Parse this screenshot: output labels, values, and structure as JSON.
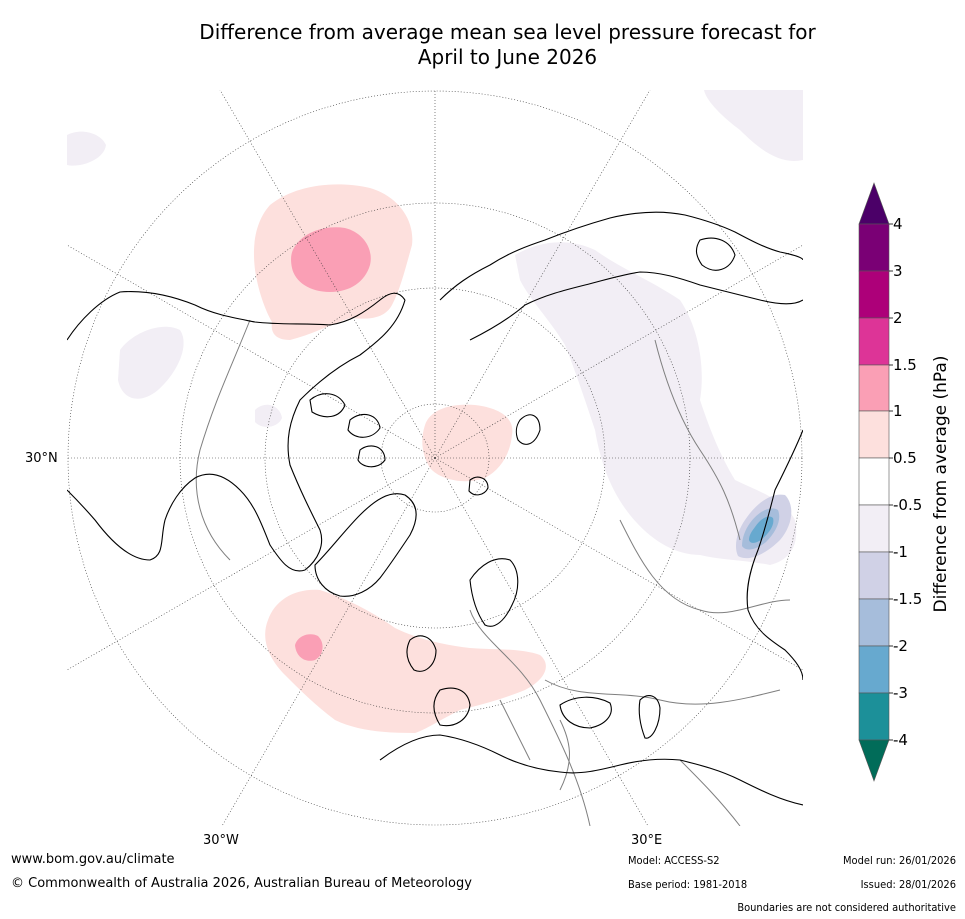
{
  "header": {
    "title_line1": "Difference from average mean sea level pressure forecast for",
    "title_line2": "April to June 2026"
  },
  "map": {
    "lon_labels": [
      "30°W",
      "30°E"
    ],
    "lat_labels": [
      "30°N"
    ],
    "land_color": "#ffffff",
    "coast_color": "#000000",
    "border_color": "#7f7f7f"
  },
  "colorbar": {
    "title": "Difference from average (hPa)",
    "ticks": [
      "4",
      "3",
      "2",
      "1.5",
      "1",
      "0.5",
      "-0.5",
      "-1",
      "-1.5",
      "-2",
      "-3",
      "-4"
    ],
    "colors_top_to_bottom": [
      "#4b0068",
      "#7a0075",
      "#ad0079",
      "#dd3497",
      "#fa9fb5",
      "#fde0dd",
      "#ffffff",
      "#f2eef5",
      "#d0d1e6",
      "#a6bddb",
      "#67a9cf",
      "#1c9099",
      "#016c59"
    ]
  },
  "footer": {
    "url": "www.bom.gov.au/climate",
    "copyright": "© Commonwealth of Australia 2026, Australian Bureau of Meteorology",
    "model": "Model: ACCESS-S2",
    "base_period": "Base period: 1981-2018",
    "model_run": "Model run: 26/01/2026",
    "issued": "Issued: 28/01/2026",
    "disclaimer": "Boundaries are not considered authoritative"
  }
}
